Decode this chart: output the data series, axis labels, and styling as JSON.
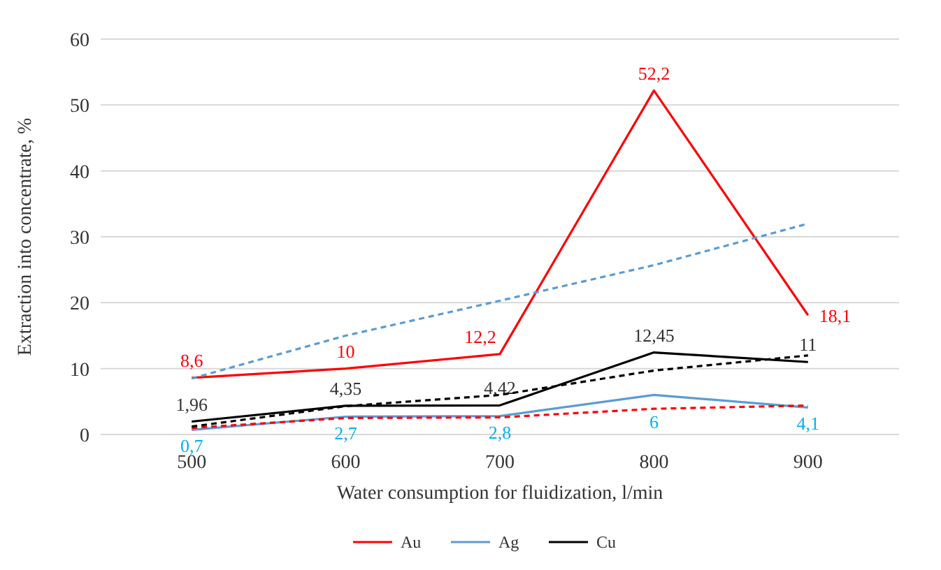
{
  "chart_data": {
    "type": "line",
    "xlabel": "Water consumption for fluidization, l/min",
    "ylabel": "Extraction into concentrate, %",
    "categories": [
      "500",
      "600",
      "700",
      "800",
      "900"
    ],
    "ylim": [
      0,
      60
    ],
    "yticks": [
      0,
      10,
      20,
      30,
      40,
      50,
      60
    ],
    "grid": "y",
    "legend": "bottom",
    "marker": "none",
    "series": [
      {
        "name": "Au",
        "color": "#ff0000",
        "values": [
          8.6,
          10,
          12.2,
          52.2,
          18.1
        ],
        "value_labels": [
          "8,6",
          "10",
          "12,2",
          "52,2",
          "18,1"
        ]
      },
      {
        "name": "Ag",
        "color": "#5b9bd5",
        "values": [
          0.7,
          2.7,
          2.8,
          6,
          4.1
        ],
        "value_labels": [
          "0,7",
          "2,7",
          "2,8",
          "6",
          "4,1"
        ]
      },
      {
        "name": "Cu",
        "color": "#000000",
        "values": [
          1.96,
          4.35,
          4.42,
          12.45,
          11
        ],
        "value_labels": [
          "1,96",
          "4,35",
          "4,42",
          "12,45",
          "11"
        ]
      },
      {
        "type": "line",
        "line_style": "dashed",
        "color": "#5b9bd5",
        "x": [
          "500",
          "600",
          "700",
          "800",
          "900"
        ],
        "values": [
          8.5,
          15,
          20.3,
          25.7,
          32
        ]
      },
      {
        "type": "line",
        "line_style": "dashed",
        "color": "#ff0000",
        "x": [
          "500",
          "600",
          "700",
          "800",
          "900"
        ],
        "values": [
          1.0,
          2.5,
          2.6,
          3.9,
          4.4
        ]
      },
      {
        "type": "line",
        "line_style": "dashed",
        "color": "#000000",
        "x": [
          "500",
          "600",
          "700",
          "800",
          "900"
        ],
        "values": [
          1.2,
          4.3,
          6.0,
          9.7,
          12.0
        ]
      }
    ]
  }
}
